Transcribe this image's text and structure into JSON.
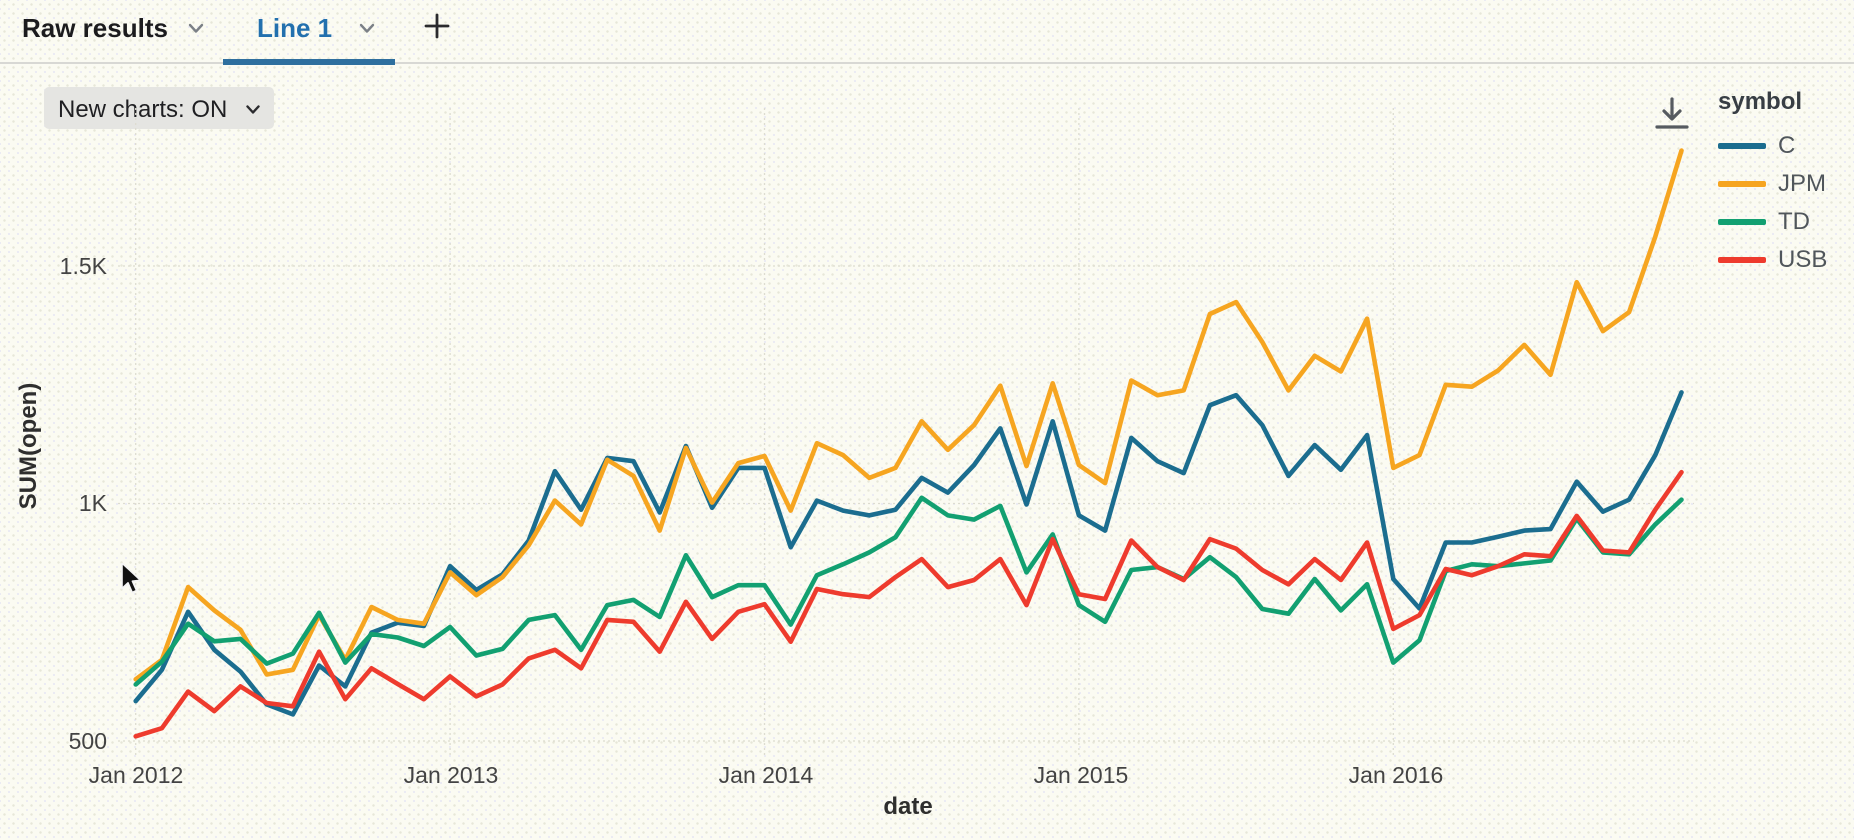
{
  "tab_bar": {
    "tabs": [
      {
        "label": "Raw results",
        "active": false
      },
      {
        "label": "Line 1",
        "active": true
      }
    ],
    "active_tab_color": "#2270ae",
    "underline_color": "#2e6f9e"
  },
  "toolbar": {
    "new_charts_label": "New charts: ON"
  },
  "icons": {
    "download": "arrow-down-to-line",
    "chevron": "chevron-down",
    "plus": "plus",
    "cursor": "arrow-pointer"
  },
  "legend": {
    "title": "symbol",
    "items": [
      {
        "label": "C",
        "color": "#1b6d8f"
      },
      {
        "label": "JPM",
        "color": "#f6a520"
      },
      {
        "label": "TD",
        "color": "#12a071"
      },
      {
        "label": "USB",
        "color": "#ee3b2d"
      }
    ]
  },
  "chart_data": {
    "type": "line",
    "title": "",
    "xlabel": "date",
    "ylabel": "SUM(open)",
    "legend_title": "symbol",
    "legend_position": "right",
    "grid": true,
    "x_start": "Jan 2012",
    "x_end": "Dec 2016",
    "x_interval": "month",
    "n_points": 60,
    "x_axis": {
      "label": "date",
      "ticks": [
        {
          "label": "Jan 2012",
          "month_index": 0
        },
        {
          "label": "Jan 2013",
          "month_index": 12
        },
        {
          "label": "Jan 2014",
          "month_index": 24
        },
        {
          "label": "Jan 2015",
          "month_index": 36
        },
        {
          "label": "Jan 2016",
          "month_index": 48
        }
      ]
    },
    "y_axis": {
      "label": "SUM(open)",
      "ticks": [
        {
          "label": "500",
          "value": 500
        },
        {
          "label": "1K",
          "value": 1000
        },
        {
          "label": "1.5K",
          "value": 1500
        }
      ],
      "range": [
        450,
        1800
      ]
    },
    "series": [
      {
        "name": "C",
        "color": "#1b6d8f",
        "values": [
          584,
          650,
          772,
          692,
          646,
          577,
          556,
          659,
          615,
          728,
          749,
          742,
          868,
          818,
          851,
          922,
          1068,
          987,
          1096,
          1089,
          981,
          1121,
          991,
          1075,
          1075,
          908,
          1006,
          985,
          975,
          987,
          1054,
          1023,
          1081,
          1158,
          998,
          1173,
          975,
          943,
          1138,
          1089,
          1064,
          1207,
          1228,
          1165,
          1058,
          1123,
          1071,
          1144,
          841,
          779,
          918,
          918,
          930,
          943,
          946,
          1046,
          983,
          1008,
          1102,
          1234
        ]
      },
      {
        "name": "JPM",
        "color": "#f6a520",
        "values": [
          630,
          671,
          824,
          775,
          734,
          640,
          650,
          765,
          671,
          782,
          755,
          747,
          855,
          807,
          845,
          912,
          1006,
          956,
          1092,
          1058,
          943,
          1117,
          1002,
          1085,
          1100,
          985,
          1127,
          1102,
          1054,
          1075,
          1173,
          1113,
          1165,
          1248,
          1079,
          1253,
          1081,
          1043,
          1259,
          1228,
          1238,
          1399,
          1424,
          1340,
          1238,
          1311,
          1278,
          1389,
          1075,
          1102,
          1250,
          1246,
          1280,
          1334,
          1271,
          1466,
          1363,
          1403,
          1562,
          1743
        ]
      },
      {
        "name": "TD",
        "color": "#12a071",
        "values": [
          619,
          667,
          747,
          710,
          715,
          663,
          684,
          770,
          665,
          725,
          718,
          700,
          740,
          680,
          694,
          755,
          765,
          692,
          786,
          797,
          761,
          891,
          803,
          828,
          828,
          745,
          849,
          872,
          897,
          929,
          1012,
          975,
          966,
          995,
          855,
          935,
          786,
          751,
          860,
          866,
          841,
          887,
          845,
          778,
          768,
          841,
          775,
          830,
          665,
          712,
          858,
          872,
          868,
          874,
          880,
          968,
          897,
          893,
          956,
          1008
        ]
      },
      {
        "name": "USB",
        "color": "#ee3b2d",
        "values": [
          510,
          527,
          604,
          563,
          615,
          580,
          573,
          688,
          588,
          653,
          620,
          588,
          636,
          594,
          619,
          674,
          692,
          653,
          755,
          751,
          688,
          793,
          715,
          772,
          788,
          709,
          820,
          809,
          803,
          845,
          883,
          824,
          839,
          883,
          786,
          925,
          809,
          799,
          922,
          866,
          839,
          925,
          905,
          860,
          830,
          883,
          839,
          918,
          736,
          765,
          862,
          849,
          868,
          893,
          889,
          974,
          901,
          897,
          987,
          1066
        ]
      }
    ]
  }
}
